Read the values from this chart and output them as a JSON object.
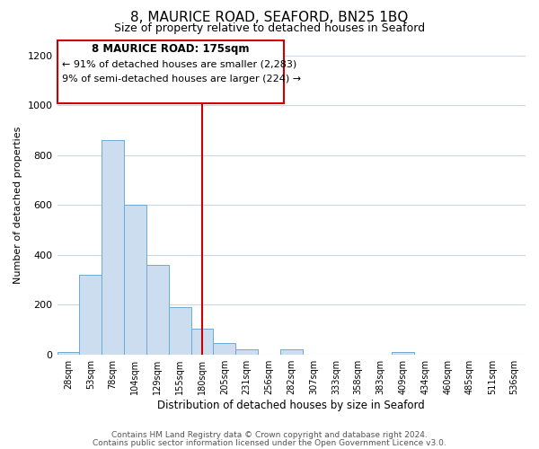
{
  "title": "8, MAURICE ROAD, SEAFORD, BN25 1BQ",
  "subtitle": "Size of property relative to detached houses in Seaford",
  "xlabel": "Distribution of detached houses by size in Seaford",
  "ylabel": "Number of detached properties",
  "bar_labels": [
    "28sqm",
    "53sqm",
    "78sqm",
    "104sqm",
    "129sqm",
    "155sqm",
    "180sqm",
    "205sqm",
    "231sqm",
    "256sqm",
    "282sqm",
    "307sqm",
    "333sqm",
    "358sqm",
    "383sqm",
    "409sqm",
    "434sqm",
    "460sqm",
    "485sqm",
    "511sqm",
    "536sqm"
  ],
  "bar_values": [
    10,
    320,
    860,
    600,
    360,
    190,
    105,
    45,
    20,
    0,
    20,
    0,
    0,
    0,
    0,
    10,
    0,
    0,
    0,
    0,
    0
  ],
  "bar_color": "#ccddf0",
  "bar_edge_color": "#6aaad4",
  "highlight_bar_index": 6,
  "highlight_line_color": "#cc0000",
  "annotation_title": "8 MAURICE ROAD: 175sqm",
  "annotation_line1": "← 91% of detached houses are smaller (2,283)",
  "annotation_line2": "9% of semi-detached houses are larger (224) →",
  "annotation_box_color": "#ffffff",
  "annotation_box_edge": "#cc0000",
  "ylim": [
    0,
    1200
  ],
  "yticks": [
    0,
    200,
    400,
    600,
    800,
    1000,
    1200
  ],
  "footer1": "Contains HM Land Registry data © Crown copyright and database right 2024.",
  "footer2": "Contains public sector information licensed under the Open Government Licence v3.0.",
  "bg_color": "#ffffff",
  "grid_color": "#c8d8e8",
  "title_fontsize": 11,
  "subtitle_fontsize": 9,
  "footer_fontsize": 6.5
}
